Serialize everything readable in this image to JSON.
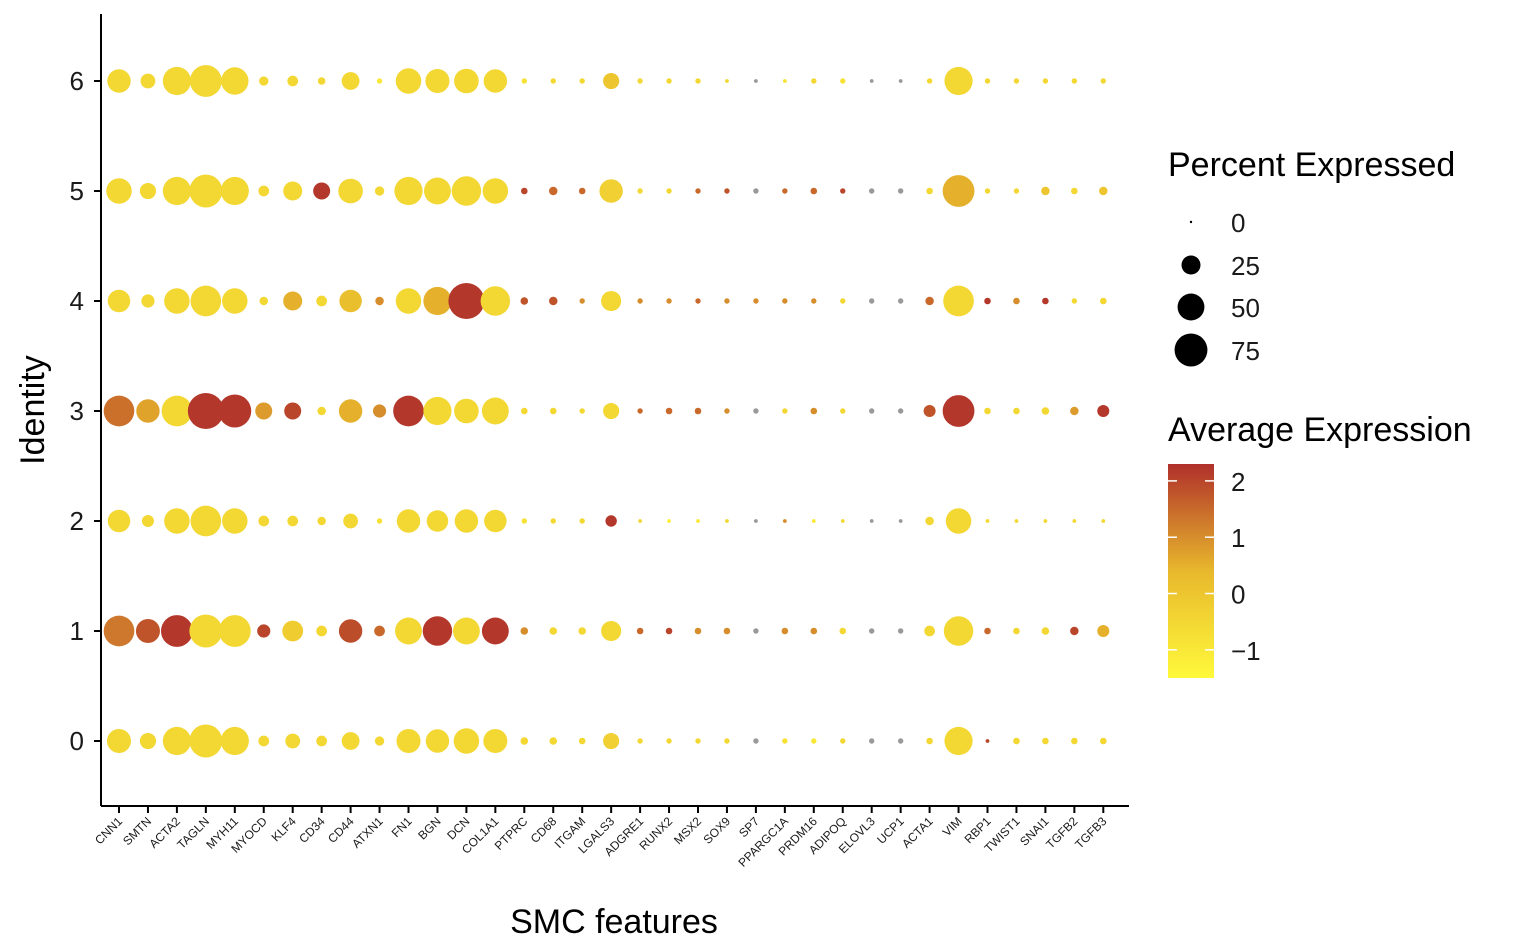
{
  "chart_data": {
    "type": "dotplot",
    "xlabel": "SMC features",
    "ylabel": "Identity",
    "genes": [
      "CNN1",
      "SMTN",
      "ACTA2",
      "TAGLN",
      "MYH11",
      "MYOCD",
      "KLF4",
      "CD34",
      "CD44",
      "ATXN1",
      "FN1",
      "BGN",
      "DCN",
      "COL1A1",
      "PTPRC",
      "CD68",
      "ITGAM",
      "LGALS3",
      "ADGRE1",
      "RUNX2",
      "MSX2",
      "SOX9",
      "SP7",
      "PPARGC1A",
      "PRDM16",
      "ADIPOQ",
      "ELOVL3",
      "UCP1",
      "ACTA1",
      "VIM",
      "RBP1",
      "TWIST1",
      "SNAI1",
      "TGFB2",
      "TGFB3"
    ],
    "identities": [
      "0",
      "1",
      "2",
      "3",
      "4",
      "5",
      "6"
    ],
    "ylim": [
      -0.6,
      6.6
    ],
    "legend_size": {
      "title": "Percent Expressed",
      "breaks": [
        0,
        25,
        50,
        75
      ],
      "labels": [
        "0",
        "25",
        "50",
        "75"
      ]
    },
    "legend_color": {
      "title": "Average Expression",
      "range": [
        -1.5,
        2.3
      ],
      "breaks": [
        2,
        1,
        0,
        -1
      ],
      "labels": [
        "2",
        "1",
        "0",
        "−1"
      ],
      "low_color": "#FFF93B",
      "mid_color": "#E8B82C",
      "high_color": "#B0302B"
    },
    "series": [
      {
        "name": "0",
        "pct": [
          40,
          18,
          55,
          75,
          55,
          8,
          15,
          8,
          22,
          6,
          40,
          38,
          45,
          40,
          4,
          4,
          3,
          18,
          2,
          2,
          2,
          2,
          2,
          2,
          2,
          2,
          2,
          2,
          3,
          55,
          1,
          3,
          3,
          3,
          3
        ],
        "avg": [
          -0.5,
          -0.5,
          -0.5,
          -0.5,
          -0.5,
          -0.5,
          -0.5,
          -0.5,
          -0.5,
          -0.5,
          -0.5,
          -0.5,
          -0.5,
          -0.5,
          -0.5,
          -0.5,
          -0.5,
          -0.3,
          -0.5,
          -0.5,
          -0.5,
          -0.5,
          0.0,
          -0.8,
          -1.0,
          -0.5,
          0.0,
          0.0,
          -0.5,
          -0.5,
          2.0,
          -0.5,
          -0.5,
          -0.5,
          -0.5
        ]
      },
      {
        "name": "1",
        "pct": [
          65,
          40,
          70,
          75,
          70,
          12,
          30,
          8,
          38,
          8,
          50,
          60,
          50,
          50,
          4,
          4,
          4,
          28,
          3,
          3,
          3,
          3,
          2,
          3,
          3,
          3,
          2,
          2,
          8,
          60,
          3,
          3,
          4,
          5,
          10
        ],
        "avg": [
          1.3,
          1.8,
          2.2,
          -0.5,
          -0.5,
          2.0,
          -0.2,
          -0.5,
          1.9,
          1.5,
          -0.5,
          2.2,
          -0.5,
          2.2,
          1.0,
          -0.5,
          -0.5,
          -0.5,
          1.5,
          2.0,
          1.0,
          1.0,
          0.0,
          1.0,
          1.0,
          -0.5,
          0.0,
          0.0,
          -0.5,
          -0.5,
          1.5,
          -0.5,
          -0.5,
          2.0,
          0.5
        ]
      },
      {
        "name": "2",
        "pct": [
          35,
          10,
          45,
          65,
          45,
          8,
          8,
          5,
          15,
          2,
          38,
          32,
          38,
          35,
          2,
          2,
          2,
          9,
          1,
          1,
          1,
          1,
          1,
          1,
          1,
          1,
          1,
          1,
          5,
          45,
          1,
          1,
          1,
          1,
          1
        ],
        "avg": [
          -0.5,
          -0.5,
          -0.5,
          -0.5,
          -0.5,
          -0.5,
          -0.5,
          -0.5,
          -0.5,
          -0.8,
          -0.5,
          -0.5,
          -0.5,
          -0.5,
          -0.8,
          -0.5,
          -0.5,
          2.2,
          -0.5,
          -1.2,
          -1.0,
          -0.5,
          0.0,
          1.0,
          -1.0,
          -0.5,
          0.0,
          0.0,
          -0.5,
          -0.5,
          -0.5,
          -0.5,
          -0.5,
          -0.5,
          -0.5
        ]
      },
      {
        "name": "3",
        "pct": [
          65,
          38,
          65,
          90,
          75,
          20,
          20,
          5,
          38,
          12,
          65,
          55,
          42,
          50,
          3,
          3,
          2,
          18,
          2,
          3,
          3,
          2,
          2,
          2,
          3,
          2,
          2,
          2,
          10,
          70,
          3,
          3,
          4,
          5,
          10
        ],
        "avg": [
          1.4,
          0.7,
          -0.5,
          2.2,
          2.2,
          0.8,
          2.0,
          -0.5,
          0.5,
          1.0,
          2.2,
          -0.5,
          -0.5,
          -0.5,
          -0.5,
          -0.5,
          -0.5,
          -0.5,
          1.5,
          1.5,
          1.5,
          1.0,
          0.0,
          -0.5,
          1.0,
          -0.5,
          0.0,
          0.0,
          1.8,
          2.2,
          -0.5,
          -0.5,
          -0.5,
          0.8,
          2.2
        ]
      },
      {
        "name": "4",
        "pct": [
          35,
          12,
          45,
          65,
          45,
          5,
          25,
          8,
          35,
          5,
          45,
          55,
          90,
          60,
          4,
          5,
          2,
          28,
          2,
          2,
          2,
          2,
          2,
          2,
          2,
          2,
          2,
          2,
          5,
          65,
          3,
          3,
          3,
          2,
          3
        ],
        "avg": [
          -0.5,
          -0.5,
          -0.5,
          -0.5,
          -0.5,
          -0.5,
          0.5,
          -0.5,
          0.2,
          1.0,
          -0.5,
          0.5,
          2.2,
          -0.5,
          1.8,
          1.8,
          1.0,
          -0.5,
          1.0,
          1.0,
          1.5,
          1.0,
          1.0,
          1.0,
          1.0,
          -0.5,
          0.0,
          0.0,
          1.5,
          -0.5,
          2.2,
          1.0,
          2.2,
          -0.5,
          -0.5
        ]
      },
      {
        "name": "5",
        "pct": [
          45,
          18,
          55,
          75,
          55,
          8,
          25,
          20,
          42,
          6,
          55,
          50,
          60,
          45,
          3,
          5,
          3,
          38,
          2,
          2,
          2,
          2,
          2,
          2,
          3,
          2,
          2,
          2,
          3,
          70,
          2,
          2,
          5,
          3,
          5
        ],
        "avg": [
          -0.5,
          -0.5,
          -0.5,
          -0.5,
          -0.5,
          -0.5,
          -0.5,
          2.2,
          -0.5,
          -0.5,
          -0.5,
          -0.5,
          -0.5,
          -0.5,
          2.0,
          1.5,
          1.5,
          -0.3,
          -0.5,
          -0.5,
          1.5,
          1.8,
          0.0,
          1.5,
          1.5,
          2.0,
          0.0,
          0.0,
          -0.5,
          0.5,
          -0.5,
          -0.5,
          0.0,
          -0.5,
          0.0
        ]
      },
      {
        "name": "6",
        "pct": [
          38,
          15,
          55,
          70,
          52,
          6,
          8,
          4,
          22,
          2,
          45,
          40,
          42,
          38,
          2,
          2,
          2,
          18,
          2,
          2,
          2,
          1,
          1,
          1,
          2,
          2,
          1,
          1,
          2,
          55,
          2,
          2,
          2,
          2,
          2
        ],
        "avg": [
          -0.5,
          -0.5,
          -0.5,
          -0.5,
          -0.5,
          -0.5,
          -0.5,
          -0.5,
          -0.5,
          -1.0,
          -0.5,
          -0.5,
          -0.5,
          -0.5,
          -0.8,
          -0.5,
          -0.5,
          0.0,
          -0.5,
          -0.5,
          -0.5,
          -0.5,
          0.0,
          -0.8,
          -0.5,
          -0.8,
          0.0,
          0.0,
          -0.5,
          -0.5,
          -0.5,
          -0.5,
          -0.5,
          -0.5,
          -0.5
        ]
      }
    ]
  }
}
